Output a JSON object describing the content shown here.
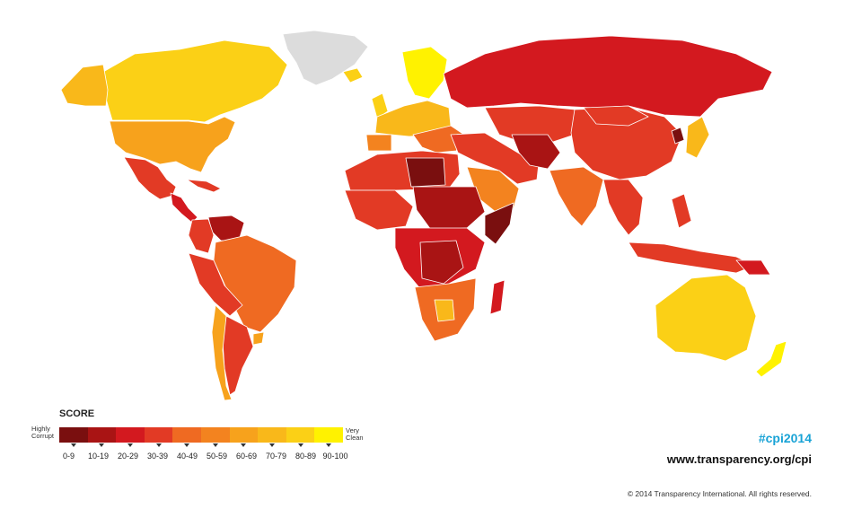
{
  "legend": {
    "title": "SCORE",
    "low_label": "Highly Corrupt",
    "high_label": "Very Clean",
    "bins": [
      {
        "label": "0-9",
        "color": "#7a0f0f"
      },
      {
        "label": "10-19",
        "color": "#a91414"
      },
      {
        "label": "20-29",
        "color": "#d3191f"
      },
      {
        "label": "30-39",
        "color": "#e23a25"
      },
      {
        "label": "40-49",
        "color": "#ef6a22"
      },
      {
        "label": "50-59",
        "color": "#f3831f"
      },
      {
        "label": "60-69",
        "color": "#f7a21c"
      },
      {
        "label": "70-79",
        "color": "#f9b81a"
      },
      {
        "label": "80-89",
        "color": "#fbd016"
      },
      {
        "label": "90-100",
        "color": "#fff200"
      }
    ]
  },
  "branding": {
    "hashtag": "#cpi2014",
    "url": "www.transparency.org/cpi",
    "copyright": "© 2014 Transparency International. All rights reserved."
  },
  "colors": {
    "no_data": "#dcdcdc",
    "border": "#ffffff",
    "hashtag": "#19a3d6"
  }
}
